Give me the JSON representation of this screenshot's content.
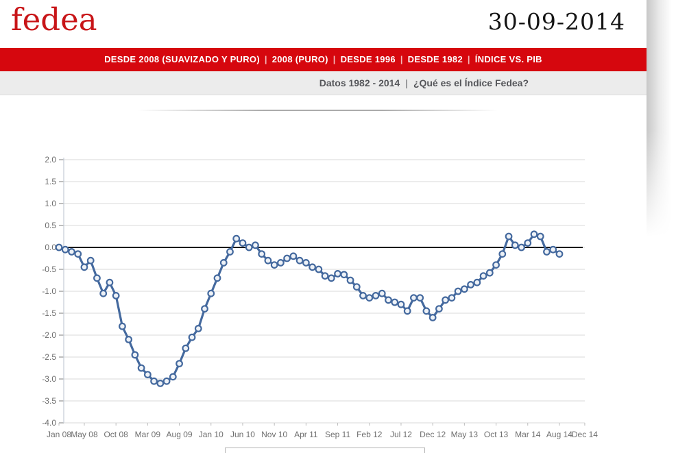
{
  "header": {
    "logo": "fedea",
    "date": "30-09-2014",
    "logo_color": "#c81518"
  },
  "nav": {
    "bar_color": "#d6070e",
    "separator": "|",
    "items": [
      "DESDE 2008 (SUAVIZADO Y PURO)",
      "2008 (PURO)",
      "DESDE 1996",
      "DESDE 1982",
      "ÍNDICE VS. PIB"
    ]
  },
  "subnav": {
    "separator": "|",
    "items": [
      "Datos 1982 - 2014",
      "¿Qué es el Índice Fedea?"
    ]
  },
  "chart_data": {
    "type": "line",
    "x_start_label": "Jan 08",
    "frequency": "monthly",
    "values": [
      0.0,
      -0.05,
      -0.1,
      -0.15,
      -0.45,
      -0.3,
      -0.7,
      -1.05,
      -0.8,
      -1.1,
      -1.8,
      -2.1,
      -2.45,
      -2.75,
      -2.9,
      -3.05,
      -3.1,
      -3.05,
      -2.95,
      -2.65,
      -2.3,
      -2.05,
      -1.85,
      -1.4,
      -1.05,
      -0.7,
      -0.35,
      -0.1,
      0.2,
      0.1,
      0.0,
      0.05,
      -0.15,
      -0.3,
      -0.4,
      -0.35,
      -0.25,
      -0.2,
      -0.3,
      -0.35,
      -0.45,
      -0.5,
      -0.65,
      -0.7,
      -0.6,
      -0.62,
      -0.75,
      -0.9,
      -1.1,
      -1.15,
      -1.1,
      -1.05,
      -1.2,
      -1.25,
      -1.3,
      -1.45,
      -1.15,
      -1.15,
      -1.45,
      -1.6,
      -1.4,
      -1.2,
      -1.15,
      -1.0,
      -0.95,
      -0.85,
      -0.8,
      -0.65,
      -0.58,
      -0.4,
      -0.15,
      0.25,
      0.05,
      0.0,
      0.1,
      0.3,
      0.25,
      -0.1,
      -0.05,
      -0.15
    ],
    "x_tick_labels": [
      "Jan 08",
      "May 08",
      "Oct 08",
      "Mar 09",
      "Aug 09",
      "Jan 10",
      "Jun 10",
      "Nov 10",
      "Apr 11",
      "Sep 11",
      "Feb 12",
      "Jul 12",
      "Dec 12",
      "May 13",
      "Oct 13",
      "Mar 14",
      "Aug 14",
      "Dec 14"
    ],
    "x_tick_month_indices": [
      0,
      4,
      9,
      14,
      19,
      24,
      29,
      34,
      39,
      44,
      49,
      54,
      59,
      64,
      69,
      74,
      79,
      83
    ],
    "y_ticks": [
      2.0,
      1.5,
      1.0,
      0.5,
      0.0,
      -0.5,
      -1.0,
      -1.5,
      -2.0,
      -2.5,
      -3.0,
      -3.5,
      -4.0
    ],
    "ylim": [
      -4.0,
      2.0
    ],
    "grid": true,
    "zero_line": true,
    "line_color": "#44699e",
    "marker_fill": "#eef2f7",
    "zero_line_color": "#1a1a1a",
    "grid_color": "#d9d9d9"
  }
}
